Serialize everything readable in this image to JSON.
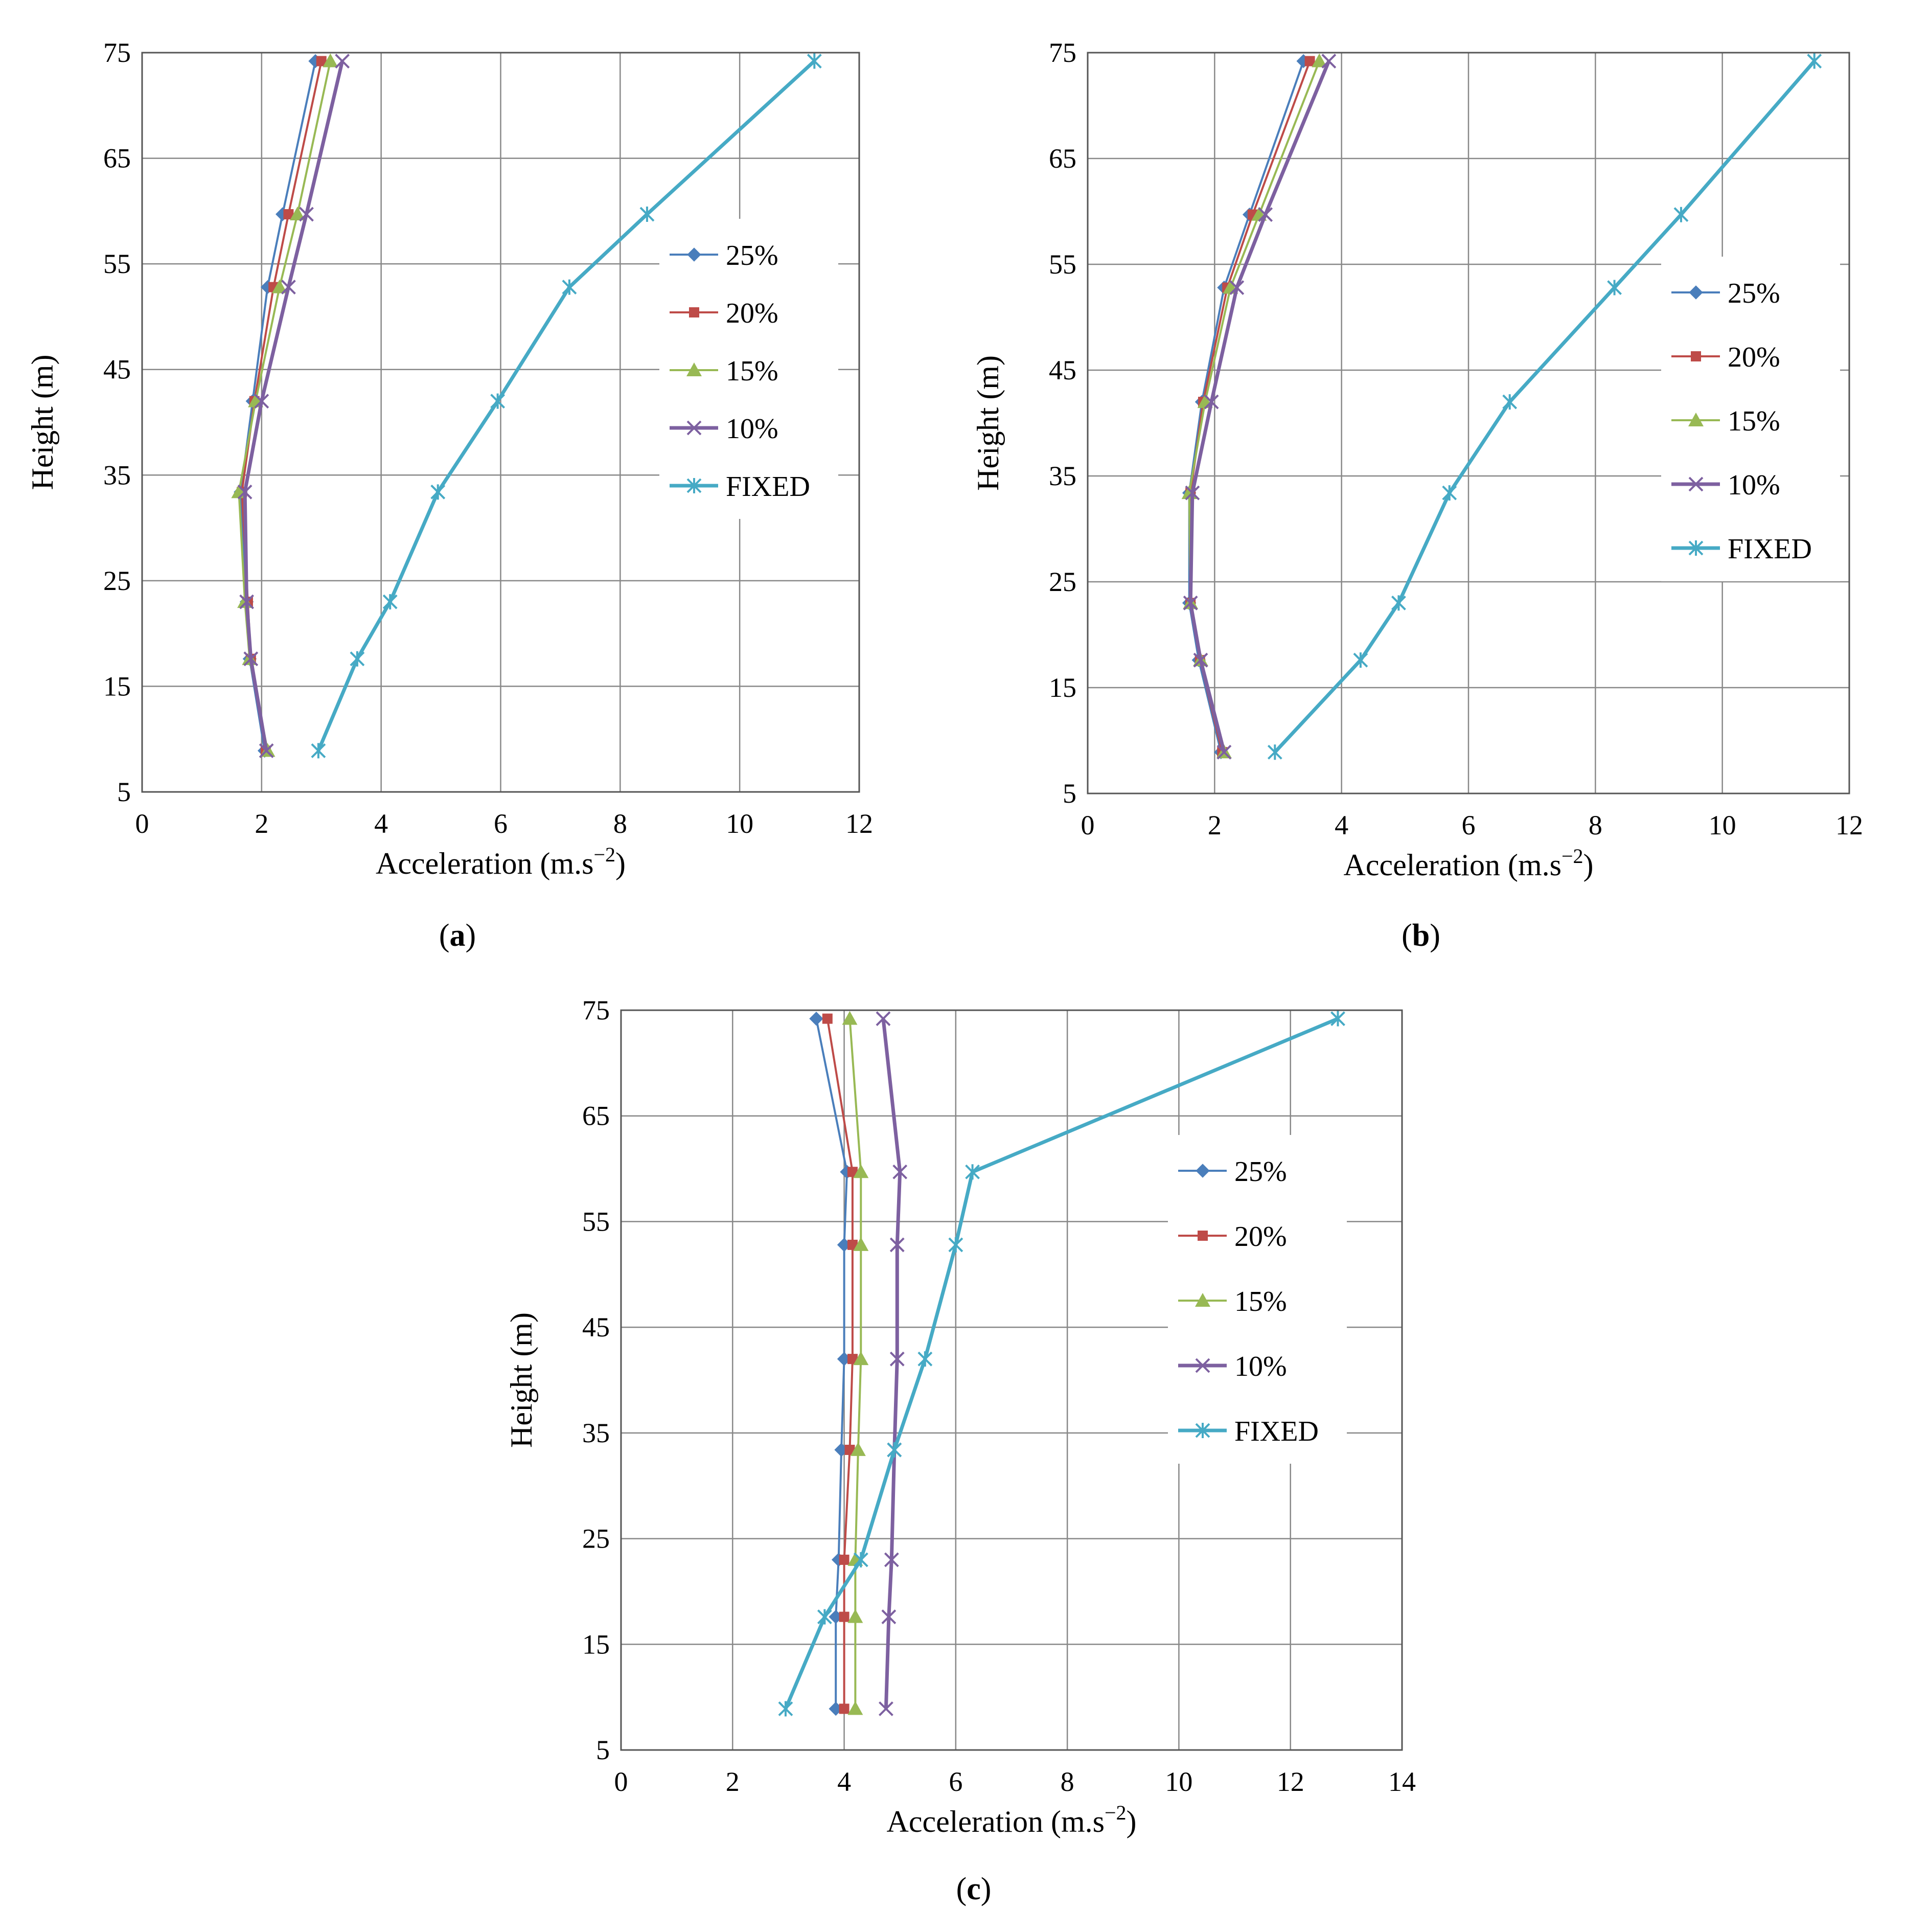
{
  "chart_data": [
    {
      "type": "line",
      "panel_label": "a",
      "xlabel": "Acceleration (m.s",
      "xlabel_sup": "−2",
      "xlabel_tail": ")",
      "ylabel": "Height (m)",
      "xlim": [
        0,
        12
      ],
      "ylim": [
        5,
        75
      ],
      "xticks": [
        0,
        2,
        4,
        6,
        8,
        10,
        12
      ],
      "yticks": [
        5,
        15,
        25,
        35,
        45,
        55,
        65,
        75
      ],
      "y": [
        74.2,
        59.7,
        52.8,
        42.0,
        33.4,
        23.0,
        17.6,
        8.9
      ],
      "legend": {
        "placement": "center-right",
        "labels": [
          "25%",
          "20%",
          "15%",
          "10%",
          "FIXED"
        ]
      },
      "series": [
        {
          "name": "25%",
          "color": "#4a7ebb",
          "marker": "diamond",
          "values": [
            2.9,
            2.35,
            2.1,
            1.85,
            1.65,
            1.75,
            1.8,
            2.05
          ]
        },
        {
          "name": "20%",
          "color": "#be4b48",
          "marker": "square",
          "values": [
            3.0,
            2.45,
            2.2,
            1.88,
            1.67,
            1.77,
            1.82,
            2.07
          ]
        },
        {
          "name": "15%",
          "color": "#98b954",
          "marker": "triangle",
          "values": [
            3.15,
            2.6,
            2.3,
            1.9,
            1.62,
            1.72,
            1.8,
            2.1
          ]
        },
        {
          "name": "10%",
          "color": "#7d60a0",
          "marker": "x",
          "values": [
            3.35,
            2.75,
            2.45,
            2.0,
            1.72,
            1.75,
            1.82,
            2.08
          ]
        },
        {
          "name": "FIXED",
          "color": "#46aac5",
          "marker": "star",
          "values": [
            11.25,
            8.45,
            7.15,
            5.95,
            4.95,
            4.15,
            3.6,
            2.95
          ]
        }
      ]
    },
    {
      "type": "line",
      "panel_label": "b",
      "xlabel": "Acceleration (m.s",
      "xlabel_sup": "−2",
      "xlabel_tail": ")",
      "ylabel": "Height (m)",
      "xlim": [
        0,
        12
      ],
      "ylim": [
        5,
        75
      ],
      "xticks": [
        0,
        2,
        4,
        6,
        8,
        10,
        12
      ],
      "yticks": [
        5,
        15,
        25,
        35,
        45,
        55,
        65,
        75
      ],
      "y": [
        74.2,
        59.7,
        52.8,
        42.0,
        33.4,
        23.0,
        17.6,
        8.9
      ],
      "legend": {
        "placement": "center-right",
        "labels": [
          "25%",
          "20%",
          "15%",
          "10%",
          "FIXED"
        ]
      },
      "series": [
        {
          "name": "25%",
          "color": "#4a7ebb",
          "marker": "diamond",
          "values": [
            3.4,
            2.55,
            2.15,
            1.8,
            1.6,
            1.6,
            1.75,
            2.1
          ]
        },
        {
          "name": "20%",
          "color": "#be4b48",
          "marker": "square",
          "values": [
            3.5,
            2.6,
            2.2,
            1.82,
            1.62,
            1.62,
            1.77,
            2.12
          ]
        },
        {
          "name": "15%",
          "color": "#98b954",
          "marker": "triangle",
          "values": [
            3.65,
            2.7,
            2.25,
            1.85,
            1.6,
            1.62,
            1.78,
            2.15
          ]
        },
        {
          "name": "10%",
          "color": "#7d60a0",
          "marker": "x",
          "values": [
            3.8,
            2.8,
            2.35,
            1.95,
            1.65,
            1.62,
            1.78,
            2.15
          ]
        },
        {
          "name": "FIXED",
          "color": "#46aac5",
          "marker": "star",
          "values": [
            11.45,
            9.35,
            8.3,
            6.65,
            5.7,
            4.9,
            4.3,
            2.95
          ]
        }
      ]
    },
    {
      "type": "line",
      "panel_label": "c",
      "xlabel": "Acceleration (m.s",
      "xlabel_sup": "−2",
      "xlabel_tail": ")",
      "ylabel": "Height (m)",
      "xlim": [
        0,
        14
      ],
      "ylim": [
        5,
        75
      ],
      "xticks": [
        0,
        2,
        4,
        6,
        8,
        10,
        12,
        14
      ],
      "yticks": [
        5,
        15,
        25,
        35,
        45,
        55,
        65,
        75
      ],
      "y": [
        74.2,
        59.7,
        52.8,
        42.0,
        33.4,
        23.0,
        17.6,
        8.9
      ],
      "legend": {
        "placement": "center-right",
        "labels": [
          "25%",
          "20%",
          "15%",
          "10%",
          "FIXED"
        ]
      },
      "series": [
        {
          "name": "25%",
          "color": "#4a7ebb",
          "marker": "diamond",
          "values": [
            3.5,
            4.05,
            4.0,
            4.0,
            3.95,
            3.9,
            3.85,
            3.85
          ]
        },
        {
          "name": "20%",
          "color": "#be4b48",
          "marker": "square",
          "values": [
            3.7,
            4.15,
            4.15,
            4.15,
            4.1,
            4.0,
            4.0,
            4.0
          ]
        },
        {
          "name": "15%",
          "color": "#98b954",
          "marker": "triangle",
          "values": [
            4.1,
            4.3,
            4.3,
            4.3,
            4.25,
            4.2,
            4.2,
            4.2
          ]
        },
        {
          "name": "10%",
          "color": "#7d60a0",
          "marker": "x",
          "values": [
            4.7,
            5.0,
            4.95,
            4.95,
            4.9,
            4.85,
            4.8,
            4.75
          ]
        },
        {
          "name": "FIXED",
          "color": "#46aac5",
          "marker": "star",
          "values": [
            12.85,
            6.3,
            6.0,
            5.45,
            4.9,
            4.3,
            3.65,
            2.95
          ]
        }
      ]
    }
  ]
}
